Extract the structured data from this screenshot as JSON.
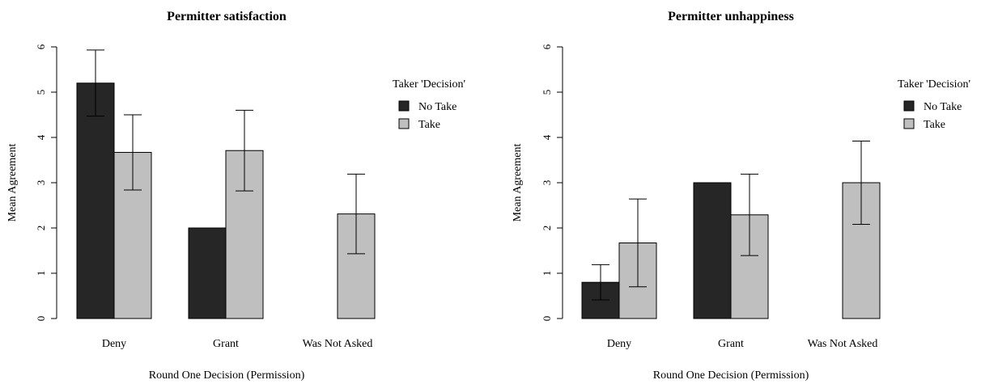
{
  "chart_data": [
    {
      "type": "bar",
      "title": "Permitter satisfaction",
      "xlabel": "Round One Decision (Permission)",
      "ylabel": "Mean Agreement",
      "categories": [
        "Deny",
        "Grant",
        "Was Not Asked"
      ],
      "ylim": [
        0,
        6
      ],
      "yticks": [
        "0",
        "1",
        "2",
        "3",
        "4",
        "5",
        "6"
      ],
      "legend": {
        "title": "Taker 'Decision'",
        "position": "top-right"
      },
      "series": [
        {
          "name": "No Take",
          "color": "#262626",
          "values": [
            5.2,
            2.0,
            null
          ],
          "err_low": [
            4.47,
            null,
            null
          ],
          "err_high": [
            5.93,
            null,
            null
          ]
        },
        {
          "name": "Take",
          "color": "#bfbfbf",
          "values": [
            3.67,
            3.71,
            2.31
          ],
          "err_low": [
            2.84,
            2.82,
            1.43
          ],
          "err_high": [
            4.5,
            4.6,
            3.19
          ]
        }
      ]
    },
    {
      "type": "bar",
      "title": "Permitter unhappiness",
      "xlabel": "Round One Decision (Permission)",
      "ylabel": "Mean Agreement",
      "categories": [
        "Deny",
        "Grant",
        "Was Not Asked"
      ],
      "ylim": [
        0,
        6
      ],
      "yticks": [
        "0",
        "1",
        "2",
        "3",
        "4",
        "5",
        "6"
      ],
      "legend": {
        "title": "Taker 'Decision'",
        "position": "top-right"
      },
      "series": [
        {
          "name": "No Take",
          "color": "#262626",
          "values": [
            0.8,
            3.0,
            null
          ],
          "err_low": [
            0.41,
            null,
            null
          ],
          "err_high": [
            1.19,
            null,
            null
          ]
        },
        {
          "name": "Take",
          "color": "#bfbfbf",
          "values": [
            1.67,
            2.29,
            3.0
          ],
          "err_low": [
            0.7,
            1.39,
            2.08
          ],
          "err_high": [
            2.64,
            3.19,
            3.92
          ]
        }
      ]
    }
  ]
}
